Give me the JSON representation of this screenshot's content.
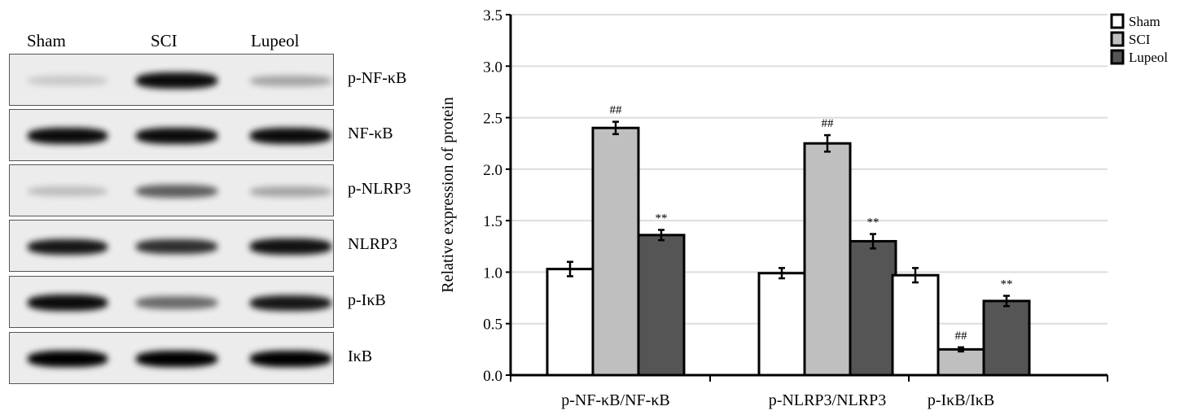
{
  "blot": {
    "lanes": [
      "Sham",
      "SCI",
      "Lupeol"
    ],
    "rows": [
      {
        "label": "p-NF-κB",
        "band_intensity": [
          0.15,
          0.95,
          0.3
        ]
      },
      {
        "label": "NF-κB",
        "band_intensity": [
          0.95,
          0.95,
          0.95
        ]
      },
      {
        "label": "p-NLRP3",
        "band_intensity": [
          0.2,
          0.6,
          0.3
        ]
      },
      {
        "label": "NLRP3",
        "band_intensity": [
          0.9,
          0.8,
          0.92
        ]
      },
      {
        "label": "p-IκB",
        "band_intensity": [
          0.95,
          0.55,
          0.9
        ]
      },
      {
        "label": "IκB",
        "band_intensity": [
          1.0,
          1.0,
          1.0
        ]
      }
    ]
  },
  "chart_data": {
    "type": "bar",
    "categories": [
      "p-NF-κB/NF-κB",
      "p-NLRP3/NLRP3",
      "p-IκB/IκB"
    ],
    "ylabel": "Relative expression of protein",
    "ylim": [
      0,
      3.5
    ],
    "yticks": [
      "0.0",
      "0.5",
      "1.0",
      "1.5",
      "2.0",
      "2.5",
      "3.0",
      "3.5"
    ],
    "grid": true,
    "legend_position": "top-right",
    "series": [
      {
        "name": "Sham",
        "color": "#ffffff",
        "values": [
          1.03,
          0.99,
          0.97
        ],
        "errors": [
          0.07,
          0.05,
          0.07
        ],
        "annotations": [
          "",
          "",
          ""
        ]
      },
      {
        "name": "SCI",
        "color": "#bfbfbf",
        "values": [
          2.4,
          2.25,
          0.25
        ],
        "errors": [
          0.06,
          0.08,
          0.02
        ],
        "annotations": [
          "##",
          "##",
          "##"
        ]
      },
      {
        "name": "Lupeol",
        "color": "#555555",
        "values": [
          1.36,
          1.3,
          0.72
        ],
        "errors": [
          0.05,
          0.07,
          0.05
        ],
        "annotations": [
          "**",
          "**",
          "**"
        ]
      }
    ]
  }
}
